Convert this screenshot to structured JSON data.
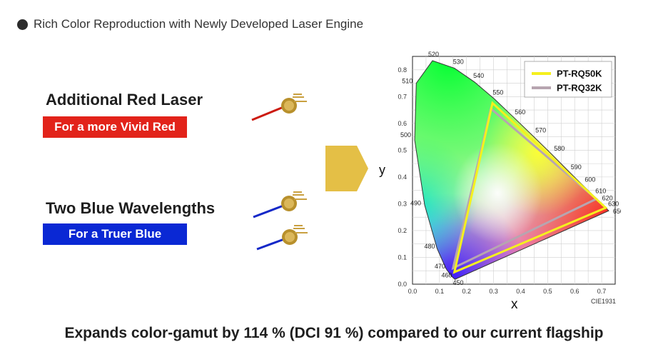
{
  "header": {
    "text": "Rich Color Reproduction with Newly Developed Laser Engine"
  },
  "features": {
    "red": {
      "title": "Additional Red Laser",
      "badge": "For a more Vivid Red",
      "color": "#e2231a"
    },
    "blue": {
      "title": "Two Blue Wavelengths",
      "badge": "For a Truer Blue",
      "color": "#0a28d4"
    }
  },
  "footer": {
    "text": "Expands color-gamut by 114 % (DCI 91 %) compared to our current flagship"
  },
  "colors": {
    "arrow": "#e4bf46",
    "series_a": "#f5f01e",
    "series_b": "#b7a5b0"
  },
  "chart_data": {
    "type": "scatter",
    "xlabel": "x",
    "ylabel": "y",
    "note": "CIE1931",
    "xlim": [
      0,
      0.75
    ],
    "ylim": [
      0,
      0.85
    ],
    "x_ticks": [
      "0.0",
      "0.1",
      "0.2",
      "0.3",
      "0.4",
      "0.5",
      "0.6",
      "0.7"
    ],
    "y_ticks": [
      "0.0",
      "0.1",
      "0.2",
      "0.3",
      "0.4",
      "0.5",
      "0.6",
      "0.7",
      "0.8"
    ],
    "grid": true,
    "legend_position": "top-right",
    "locus": [
      {
        "nm": "450",
        "x": 0.157,
        "y": 0.018
      },
      {
        "nm": "460",
        "x": 0.144,
        "y": 0.03
      },
      {
        "nm": "470",
        "x": 0.124,
        "y": 0.058
      },
      {
        "nm": "480",
        "x": 0.091,
        "y": 0.133
      },
      {
        "nm": "490",
        "x": 0.045,
        "y": 0.295
      },
      {
        "nm": "500",
        "x": 0.008,
        "y": 0.538
      },
      {
        "nm": "510",
        "x": 0.014,
        "y": 0.75
      },
      {
        "nm": "520",
        "x": 0.074,
        "y": 0.834
      },
      {
        "nm": "530",
        "x": 0.155,
        "y": 0.806
      },
      {
        "nm": "540",
        "x": 0.23,
        "y": 0.754
      },
      {
        "nm": "550",
        "x": 0.302,
        "y": 0.692
      },
      {
        "nm": "560",
        "x": 0.373,
        "y": 0.624
      },
      {
        "nm": "570",
        "x": 0.444,
        "y": 0.555
      },
      {
        "nm": "580",
        "x": 0.513,
        "y": 0.487
      },
      {
        "nm": "590",
        "x": 0.575,
        "y": 0.424
      },
      {
        "nm": "600",
        "x": 0.627,
        "y": 0.372
      },
      {
        "nm": "610",
        "x": 0.666,
        "y": 0.334
      },
      {
        "nm": "620",
        "x": 0.691,
        "y": 0.308
      },
      {
        "nm": "630",
        "x": 0.708,
        "y": 0.292
      },
      {
        "nm": "650",
        "x": 0.726,
        "y": 0.274
      }
    ],
    "series": [
      {
        "name": "PT-RQ50K",
        "points": [
          [
            0.296,
            0.676
          ],
          [
            0.715,
            0.285
          ],
          [
            0.155,
            0.045
          ]
        ]
      },
      {
        "name": "PT-RQ32K",
        "points": [
          [
            0.29,
            0.655
          ],
          [
            0.68,
            0.318
          ],
          [
            0.15,
            0.06
          ]
        ]
      }
    ]
  }
}
